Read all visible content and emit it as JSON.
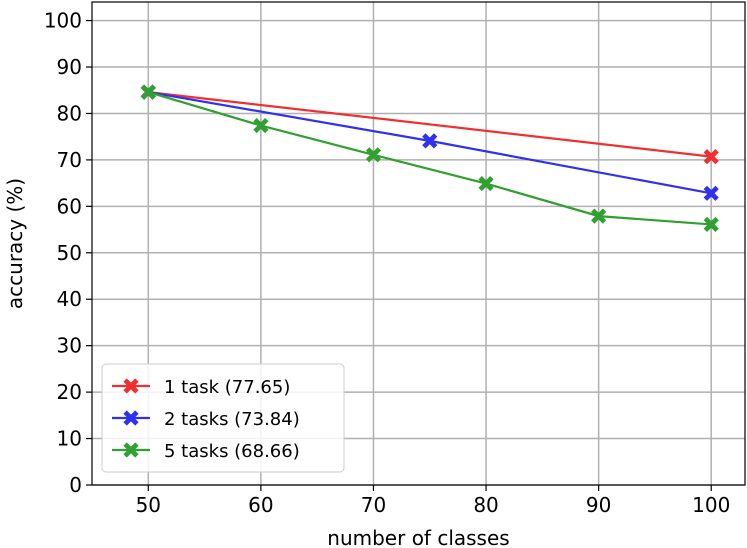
{
  "chart_data": {
    "type": "line",
    "xlabel": "number of classes",
    "ylabel": "accuracy (%)",
    "xlim": [
      45,
      103
    ],
    "ylim": [
      0,
      104
    ],
    "xticks": [
      50,
      60,
      70,
      80,
      90,
      100
    ],
    "yticks": [
      0,
      10,
      20,
      30,
      40,
      50,
      60,
      70,
      80,
      90,
      100
    ],
    "grid": true,
    "legend_position": "lower-left",
    "marker": "X",
    "series": [
      {
        "name": "1 task (77.65)",
        "color": "#f03030",
        "x": [
          50,
          100
        ],
        "y": [
          84.6,
          70.7
        ]
      },
      {
        "name": "2 tasks (73.84)",
        "color": "#3030f0",
        "x": [
          50,
          75,
          100
        ],
        "y": [
          84.6,
          74.1,
          62.8
        ]
      },
      {
        "name": "5 tasks (68.66)",
        "color": "#30a030",
        "x": [
          50,
          60,
          70,
          80,
          90,
          100
        ],
        "y": [
          84.6,
          77.4,
          71.1,
          64.9,
          57.9,
          56.1
        ]
      }
    ]
  }
}
